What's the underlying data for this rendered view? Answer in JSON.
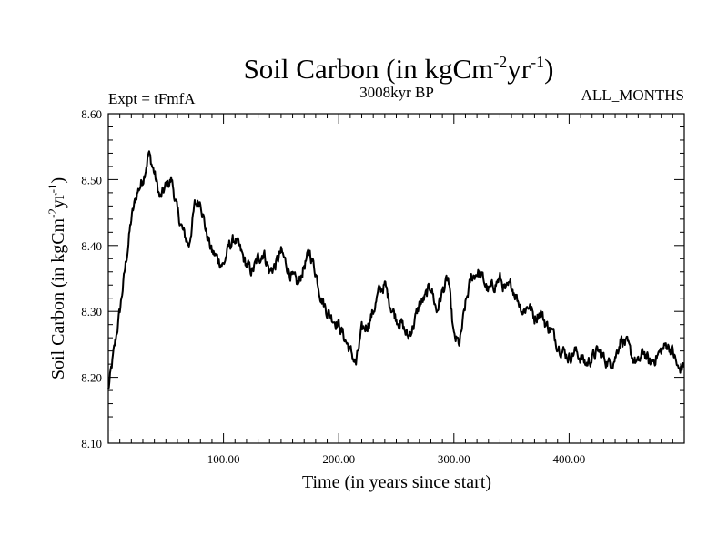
{
  "chart_data": {
    "type": "line",
    "title": "Soil Carbon (in kgCm",
    "title_sup1": "-2",
    "title_mid": "yr",
    "title_sup2": "-1",
    "title_end": ")",
    "left_label": "Expt = tFmfA",
    "center_label": "3008kyr BP",
    "right_label": "ALL_MONTHS",
    "xlabel": "Time (in years since start)",
    "ylabel": "Soil Carbon (in kgCm",
    "ylabel_sup1": "-2",
    "ylabel_mid": "yr",
    "ylabel_sup2": "-1",
    "ylabel_end": ")",
    "xlim": [
      0,
      500
    ],
    "ylim": [
      8.1,
      8.6
    ],
    "xticks": [
      100,
      200,
      300,
      400
    ],
    "xtick_labels": [
      "100.00",
      "200.00",
      "300.00",
      "400.00"
    ],
    "yticks": [
      8.1,
      8.2,
      8.3,
      8.4,
      8.5,
      8.6
    ],
    "ytick_labels": [
      "8.10",
      "8.20",
      "8.30",
      "8.40",
      "8.50",
      "8.60"
    ],
    "series": [
      {
        "name": "Soil Carbon",
        "color": "#000000",
        "x": [
          0,
          5,
          10,
          15,
          20,
          25,
          30,
          35,
          40,
          45,
          50,
          55,
          60,
          65,
          70,
          75,
          80,
          85,
          90,
          95,
          100,
          105,
          110,
          115,
          120,
          125,
          130,
          135,
          140,
          145,
          150,
          155,
          160,
          165,
          170,
          175,
          180,
          185,
          190,
          195,
          200,
          205,
          210,
          215,
          220,
          225,
          230,
          235,
          240,
          245,
          250,
          255,
          260,
          265,
          270,
          275,
          280,
          285,
          290,
          295,
          300,
          305,
          310,
          315,
          320,
          325,
          330,
          335,
          340,
          345,
          350,
          355,
          360,
          365,
          370,
          375,
          380,
          385,
          390,
          395,
          400,
          405,
          410,
          415,
          420,
          425,
          430,
          435,
          440,
          445,
          450,
          455,
          460,
          465,
          470,
          475,
          480,
          485,
          490,
          495,
          500
        ],
        "values": [
          8.18,
          8.24,
          8.3,
          8.37,
          8.44,
          8.48,
          8.5,
          8.54,
          8.51,
          8.47,
          8.49,
          8.5,
          8.45,
          8.42,
          8.4,
          8.46,
          8.47,
          8.42,
          8.39,
          8.38,
          8.37,
          8.4,
          8.41,
          8.39,
          8.37,
          8.36,
          8.38,
          8.39,
          8.36,
          8.37,
          8.39,
          8.37,
          8.35,
          8.34,
          8.37,
          8.39,
          8.36,
          8.32,
          8.3,
          8.29,
          8.28,
          8.26,
          8.24,
          8.22,
          8.27,
          8.28,
          8.3,
          8.33,
          8.34,
          8.31,
          8.29,
          8.28,
          8.26,
          8.28,
          8.31,
          8.32,
          8.34,
          8.3,
          8.33,
          8.35,
          8.26,
          8.25,
          8.31,
          8.35,
          8.36,
          8.35,
          8.33,
          8.34,
          8.35,
          8.33,
          8.34,
          8.32,
          8.3,
          8.31,
          8.29,
          8.3,
          8.28,
          8.27,
          8.25,
          8.24,
          8.23,
          8.24,
          8.23,
          8.22,
          8.23,
          8.24,
          8.23,
          8.22,
          8.23,
          8.26,
          8.25,
          8.23,
          8.22,
          8.24,
          8.22,
          8.23,
          8.24,
          8.25,
          8.24,
          8.21,
          8.22
        ]
      }
    ]
  }
}
